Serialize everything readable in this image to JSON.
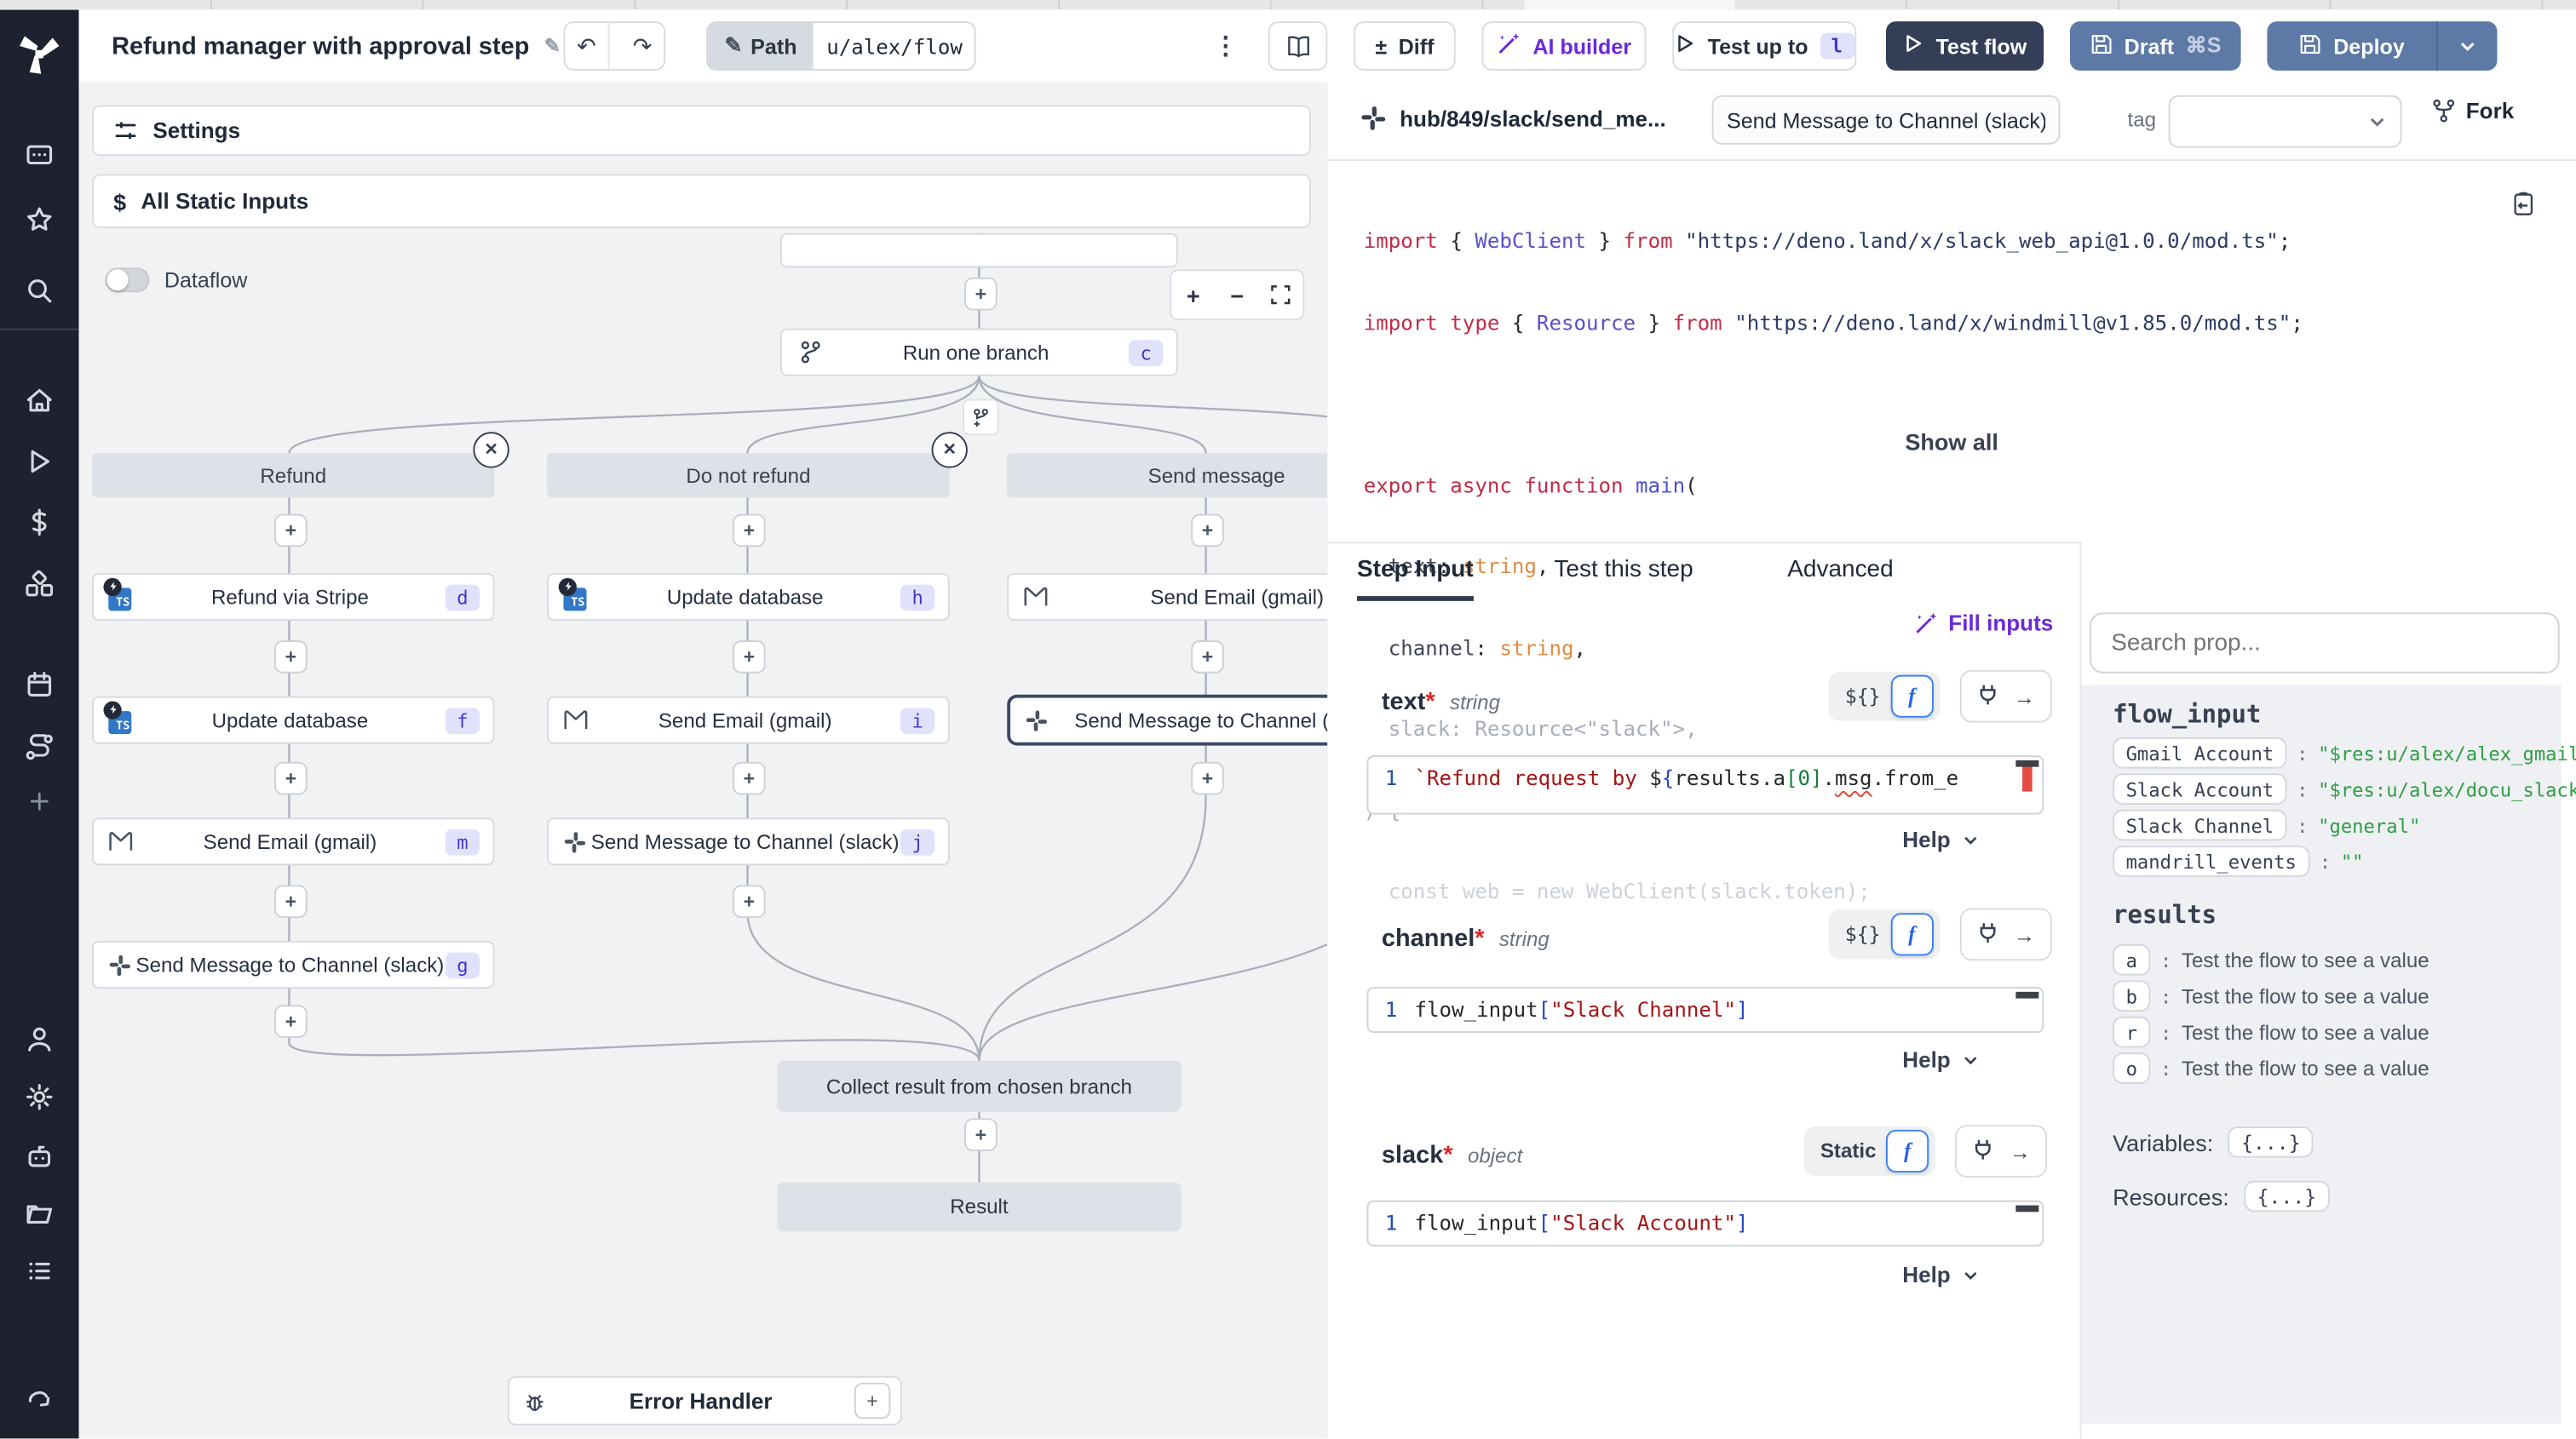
{
  "topbar": {
    "title": "Refund manager with approval step",
    "path_label": "Path",
    "path_value": "u/alex/flow",
    "diff_label": "Diff",
    "ai_builder_label": "AI builder",
    "test_up_to_label": "Test up to",
    "test_up_to_badge": "l",
    "test_flow_label": "Test flow",
    "draft_label": "Draft",
    "draft_shortcut": "⌘S",
    "deploy_label": "Deploy"
  },
  "flow": {
    "settings_label": "Settings",
    "static_inputs_icon": "$",
    "static_inputs_label": "All Static Inputs",
    "dataflow_label": "Dataflow",
    "zoom_in": "+",
    "zoom_out": "−",
    "run_one_branch": {
      "label": "Run one branch",
      "badge": "c"
    },
    "branches": [
      {
        "label": "Refund"
      },
      {
        "label": "Do not refund"
      },
      {
        "label": "Send message"
      }
    ],
    "cols": [
      {
        "nodes": [
          {
            "label": "Refund via Stripe",
            "badge": "d"
          },
          {
            "label": "Update database",
            "badge": "f"
          },
          {
            "label": "Send Email (gmail)",
            "badge": "m"
          },
          {
            "label": "Send Message to Channel (slack)",
            "badge": "g"
          }
        ]
      },
      {
        "nodes": [
          {
            "label": "Update database",
            "badge": "h"
          },
          {
            "label": "Send Email (gmail)",
            "badge": "i"
          },
          {
            "label": "Send Message to Channel (slack)",
            "badge": "j"
          }
        ]
      },
      {
        "nodes": [
          {
            "label": "Send Email (gmail)"
          },
          {
            "label": "Send Message to Channel (slack)"
          }
        ]
      }
    ],
    "collect_label": "Collect result from chosen branch",
    "result_label": "Result",
    "error_handler_label": "Error Handler"
  },
  "step": {
    "hub_path": "hub/849/slack/send_me...",
    "name_value": "Send Message to Channel (slack)",
    "tag_label": "tag",
    "fork_label": "Fork",
    "show_all_label": "Show all",
    "tabs": [
      {
        "label": "Step Input"
      },
      {
        "label": "Test this step"
      },
      {
        "label": "Advanced"
      }
    ],
    "fill_inputs_label": "Fill inputs",
    "code_lines": [
      [
        {
          "c": "kw",
          "t": "import "
        },
        {
          "c": "p",
          "t": "{ "
        },
        {
          "c": "ty",
          "t": "WebClient"
        },
        {
          "c": "p",
          "t": " } "
        },
        {
          "c": "kw",
          "t": "from "
        },
        {
          "c": "st",
          "t": "\"https://deno.land/x/slack_web_api@1.0.0/mod.ts\""
        },
        {
          "c": "p",
          "t": ";"
        }
      ],
      [
        {
          "c": "kw",
          "t": "import type "
        },
        {
          "c": "p",
          "t": "{ "
        },
        {
          "c": "ty",
          "t": "Resource"
        },
        {
          "c": "p",
          "t": " } "
        },
        {
          "c": "kw",
          "t": "from "
        },
        {
          "c": "st",
          "t": "\"https://deno.land/x/windmill@v1.85.0/mod.ts\""
        },
        {
          "c": "p",
          "t": ";"
        }
      ],
      [],
      [
        {
          "c": "kw",
          "t": "export async function "
        },
        {
          "c": "fn",
          "t": "main"
        },
        {
          "c": "p",
          "t": "("
        }
      ],
      [
        {
          "c": "id",
          "t": "  text"
        },
        {
          "c": "p",
          "t": ": "
        },
        {
          "c": "pr",
          "t": "string"
        },
        {
          "c": "p",
          "t": ","
        }
      ],
      [
        {
          "c": "id",
          "t": "  channel"
        },
        {
          "c": "p",
          "t": ": "
        },
        {
          "c": "pr",
          "t": "string"
        },
        {
          "c": "p",
          "t": ","
        }
      ],
      [
        {
          "c": "fade",
          "t": "  slack: Resource<\"slack\">,"
        }
      ],
      [
        {
          "c": "fade",
          "t": ") {"
        }
      ],
      [
        {
          "c": "fade2",
          "t": "  const web = new WebClient(slack.token);"
        }
      ]
    ],
    "fields": [
      {
        "name": "text",
        "asterisk": "*",
        "type": "string",
        "toggle": "${}",
        "line_no": "1",
        "help": "Help",
        "code": [
          {
            "c": "str2",
            "t": "`Refund request by "
          },
          {
            "c": "p",
            "t": "$"
          },
          {
            "c": "br",
            "t": "{"
          },
          {
            "c": "p",
            "t": "results.a"
          },
          {
            "c": "grn",
            "t": "[0]"
          },
          {
            "c": "p",
            "t": "."
          },
          {
            "c": "sq",
            "t": "msg"
          },
          {
            "c": "p",
            "t": ".from_e"
          }
        ]
      },
      {
        "name": "channel",
        "asterisk": "*",
        "type": "string",
        "toggle": "${}",
        "line_no": "1",
        "help": "Help",
        "code": [
          {
            "c": "p",
            "t": "flow_input"
          },
          {
            "c": "br",
            "t": "["
          },
          {
            "c": "str2",
            "t": "\"Slack Channel\""
          },
          {
            "c": "br",
            "t": "]"
          }
        ]
      },
      {
        "name": "slack",
        "asterisk": "*",
        "type": "object",
        "toggle": "Static",
        "line_no": "1",
        "help": "Help",
        "code": [
          {
            "c": "p",
            "t": "flow_input"
          },
          {
            "c": "br",
            "t": "["
          },
          {
            "c": "str2",
            "t": "\"Slack Account\""
          },
          {
            "c": "br",
            "t": "]"
          }
        ]
      }
    ]
  },
  "props": {
    "search_placeholder": "Search prop...",
    "colon": ":",
    "flow_input_title": "flow_input",
    "flow_inputs": [
      {
        "key": "Gmail Account",
        "value": "\"$res:u/alex/alex_gmail\""
      },
      {
        "key": "Slack Account",
        "value": "\"$res:u/alex/docu_slack\""
      },
      {
        "key": "Slack Channel",
        "value": "\"general\""
      },
      {
        "key": "mandrill_events",
        "value": "\"\""
      }
    ],
    "results_title": "results",
    "results": [
      {
        "key": "a",
        "value": "Test the flow to see a value"
      },
      {
        "key": "b",
        "value": "Test the flow to see a value"
      },
      {
        "key": "r",
        "value": "Test the flow to see a value"
      },
      {
        "key": "o",
        "value": "Test the flow to see a value"
      }
    ],
    "variables_label": "Variables:",
    "variables_value": "{...}",
    "resources_label": "Resources:",
    "resources_value": "{...}"
  }
}
